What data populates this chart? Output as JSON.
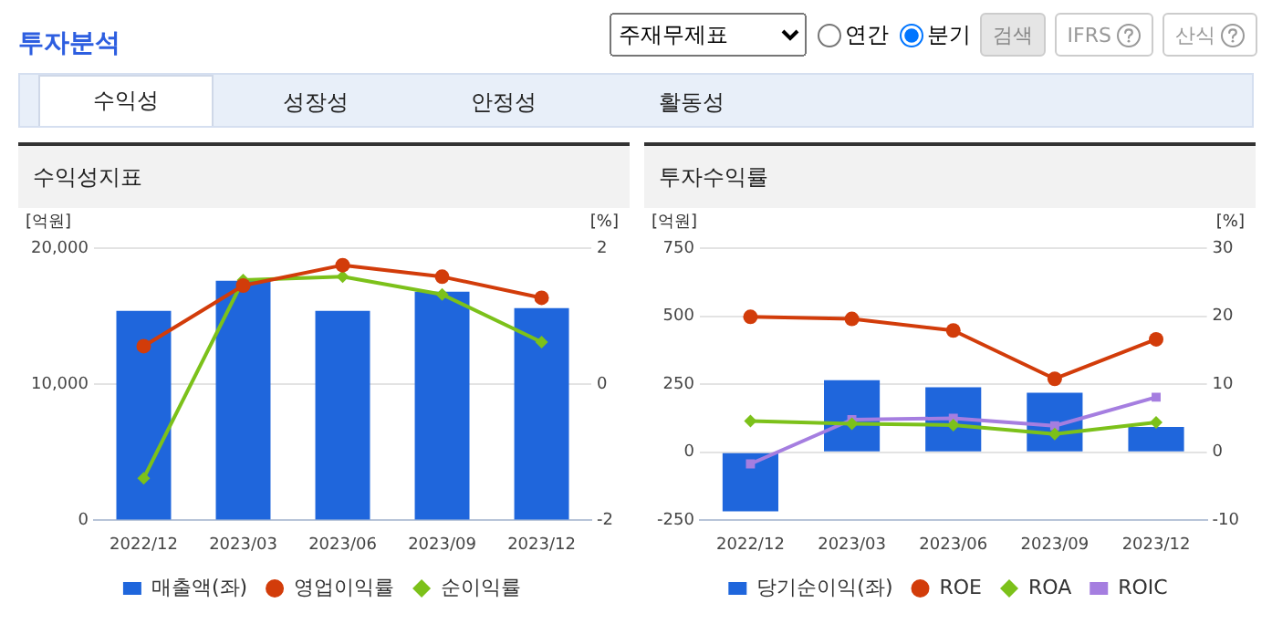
{
  "chart_data": [
    {
      "type": "other",
      "title": "투자분석",
      "annotations": [
        "주재무제표",
        "연간",
        "분기",
        "검색",
        "IFRS",
        "산식",
        "수익성",
        "성장성",
        "안정성",
        "활동성"
      ]
    },
    {
      "type": "bar",
      "title": "수익성지표",
      "ylabel": "[억원]",
      "y2label": "[%]",
      "categories": [
        "2022/12",
        "2023/03",
        "2023/06",
        "2023/09",
        "2023/12"
      ],
      "series": [
        {
          "name": "매출액(좌)",
          "type": "bar",
          "color": "#1f66dc",
          "values": [
            15400,
            17600,
            15400,
            16800,
            15600
          ]
        },
        {
          "name": "영업이익률",
          "type": "line",
          "axis": "y2",
          "marker": "circle",
          "color": "#d23c0a",
          "values": [
            0.56,
            1.45,
            1.75,
            1.58,
            1.27
          ]
        },
        {
          "name": "순이익률",
          "type": "line",
          "axis": "y2",
          "marker": "diamond",
          "color": "#7cc11a",
          "values": [
            -1.38,
            1.53,
            1.58,
            1.32,
            0.62
          ]
        }
      ],
      "ylim": [
        0,
        20000
      ],
      "yticks": [
        0,
        {
          "value": 10000,
          "label": "10,000"
        },
        {
          "value": 20000,
          "label": "20,000"
        }
      ],
      "y2lim": [
        -2,
        2
      ],
      "y2ticks": [
        -2,
        0,
        2
      ],
      "grid": "y",
      "legend": "bottom"
    },
    {
      "type": "bar",
      "title": "투자수익률",
      "ylabel": "[억원]",
      "y2label": "[%]",
      "categories": [
        "2022/12",
        "2023/03",
        "2023/06",
        "2023/09",
        "2023/12"
      ],
      "series": [
        {
          "name": "당기순이익(좌)",
          "type": "bar",
          "color": "#1f66dc",
          "values": [
            -217,
            265,
            239,
            219,
            93
          ]
        },
        {
          "name": "ROE",
          "type": "line",
          "axis": "y2",
          "marker": "circle",
          "color": "#d23c0a",
          "values": [
            19.9,
            19.6,
            17.9,
            10.8,
            16.6
          ]
        },
        {
          "name": "ROA",
          "type": "line",
          "axis": "y2",
          "marker": "diamond",
          "color": "#7cc11a",
          "values": [
            4.6,
            4.2,
            4.0,
            2.7,
            4.4
          ]
        },
        {
          "name": "ROIC",
          "type": "line",
          "axis": "y2",
          "marker": "square",
          "color": "#a57ee0",
          "values": [
            -1.7,
            4.8,
            5.0,
            3.9,
            8.1
          ]
        }
      ],
      "ylim": [
        -250,
        750
      ],
      "yticks": [
        -250,
        0,
        250,
        500,
        750
      ],
      "y2lim": [
        -10,
        30
      ],
      "y2ticks": [
        -10,
        0,
        10,
        20,
        30
      ],
      "grid": "y",
      "legend": "bottom"
    }
  ]
}
